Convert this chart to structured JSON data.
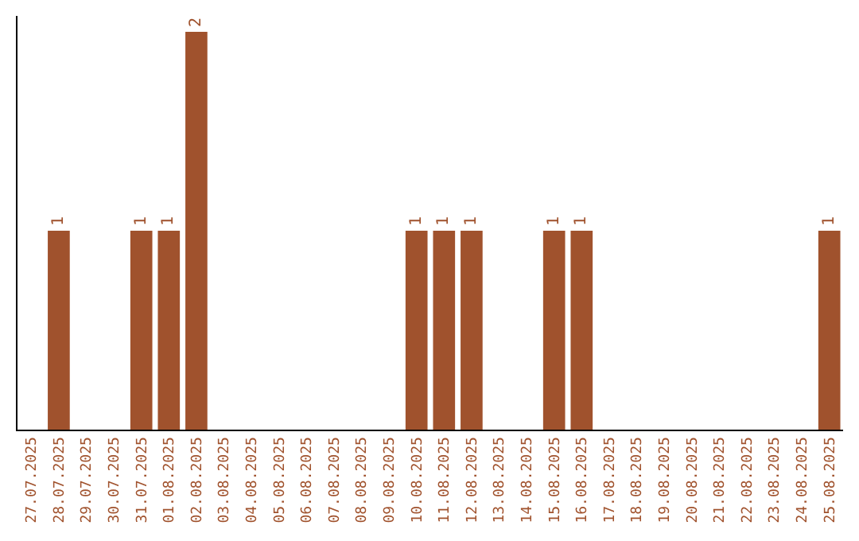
{
  "chart_data": {
    "type": "bar",
    "categories": [
      "27.07.2025",
      "28.07.2025",
      "29.07.2025",
      "30.07.2025",
      "31.07.2025",
      "01.08.2025",
      "02.08.2025",
      "03.08.2025",
      "04.08.2025",
      "05.08.2025",
      "06.08.2025",
      "07.08.2025",
      "08.08.2025",
      "09.08.2025",
      "10.08.2025",
      "11.08.2025",
      "12.08.2025",
      "13.08.2025",
      "14.08.2025",
      "15.08.2025",
      "16.08.2025",
      "17.08.2025",
      "18.08.2025",
      "19.08.2025",
      "20.08.2025",
      "21.08.2025",
      "22.08.2025",
      "23.08.2025",
      "24.08.2025",
      "25.08.2025"
    ],
    "values": [
      0,
      1,
      0,
      0,
      1,
      1,
      2,
      0,
      0,
      0,
      0,
      0,
      0,
      0,
      1,
      1,
      1,
      0,
      0,
      1,
      1,
      0,
      0,
      0,
      0,
      0,
      0,
      0,
      0,
      1
    ],
    "value_labels": [
      null,
      "1",
      null,
      null,
      "1",
      "1",
      "2",
      null,
      null,
      null,
      null,
      null,
      null,
      null,
      "1",
      "1",
      "1",
      null,
      null,
      "1",
      "1",
      null,
      null,
      null,
      null,
      null,
      null,
      null,
      null,
      "1"
    ],
    "color": "#a0522d",
    "grid": false,
    "tick_labels": "x"
  }
}
